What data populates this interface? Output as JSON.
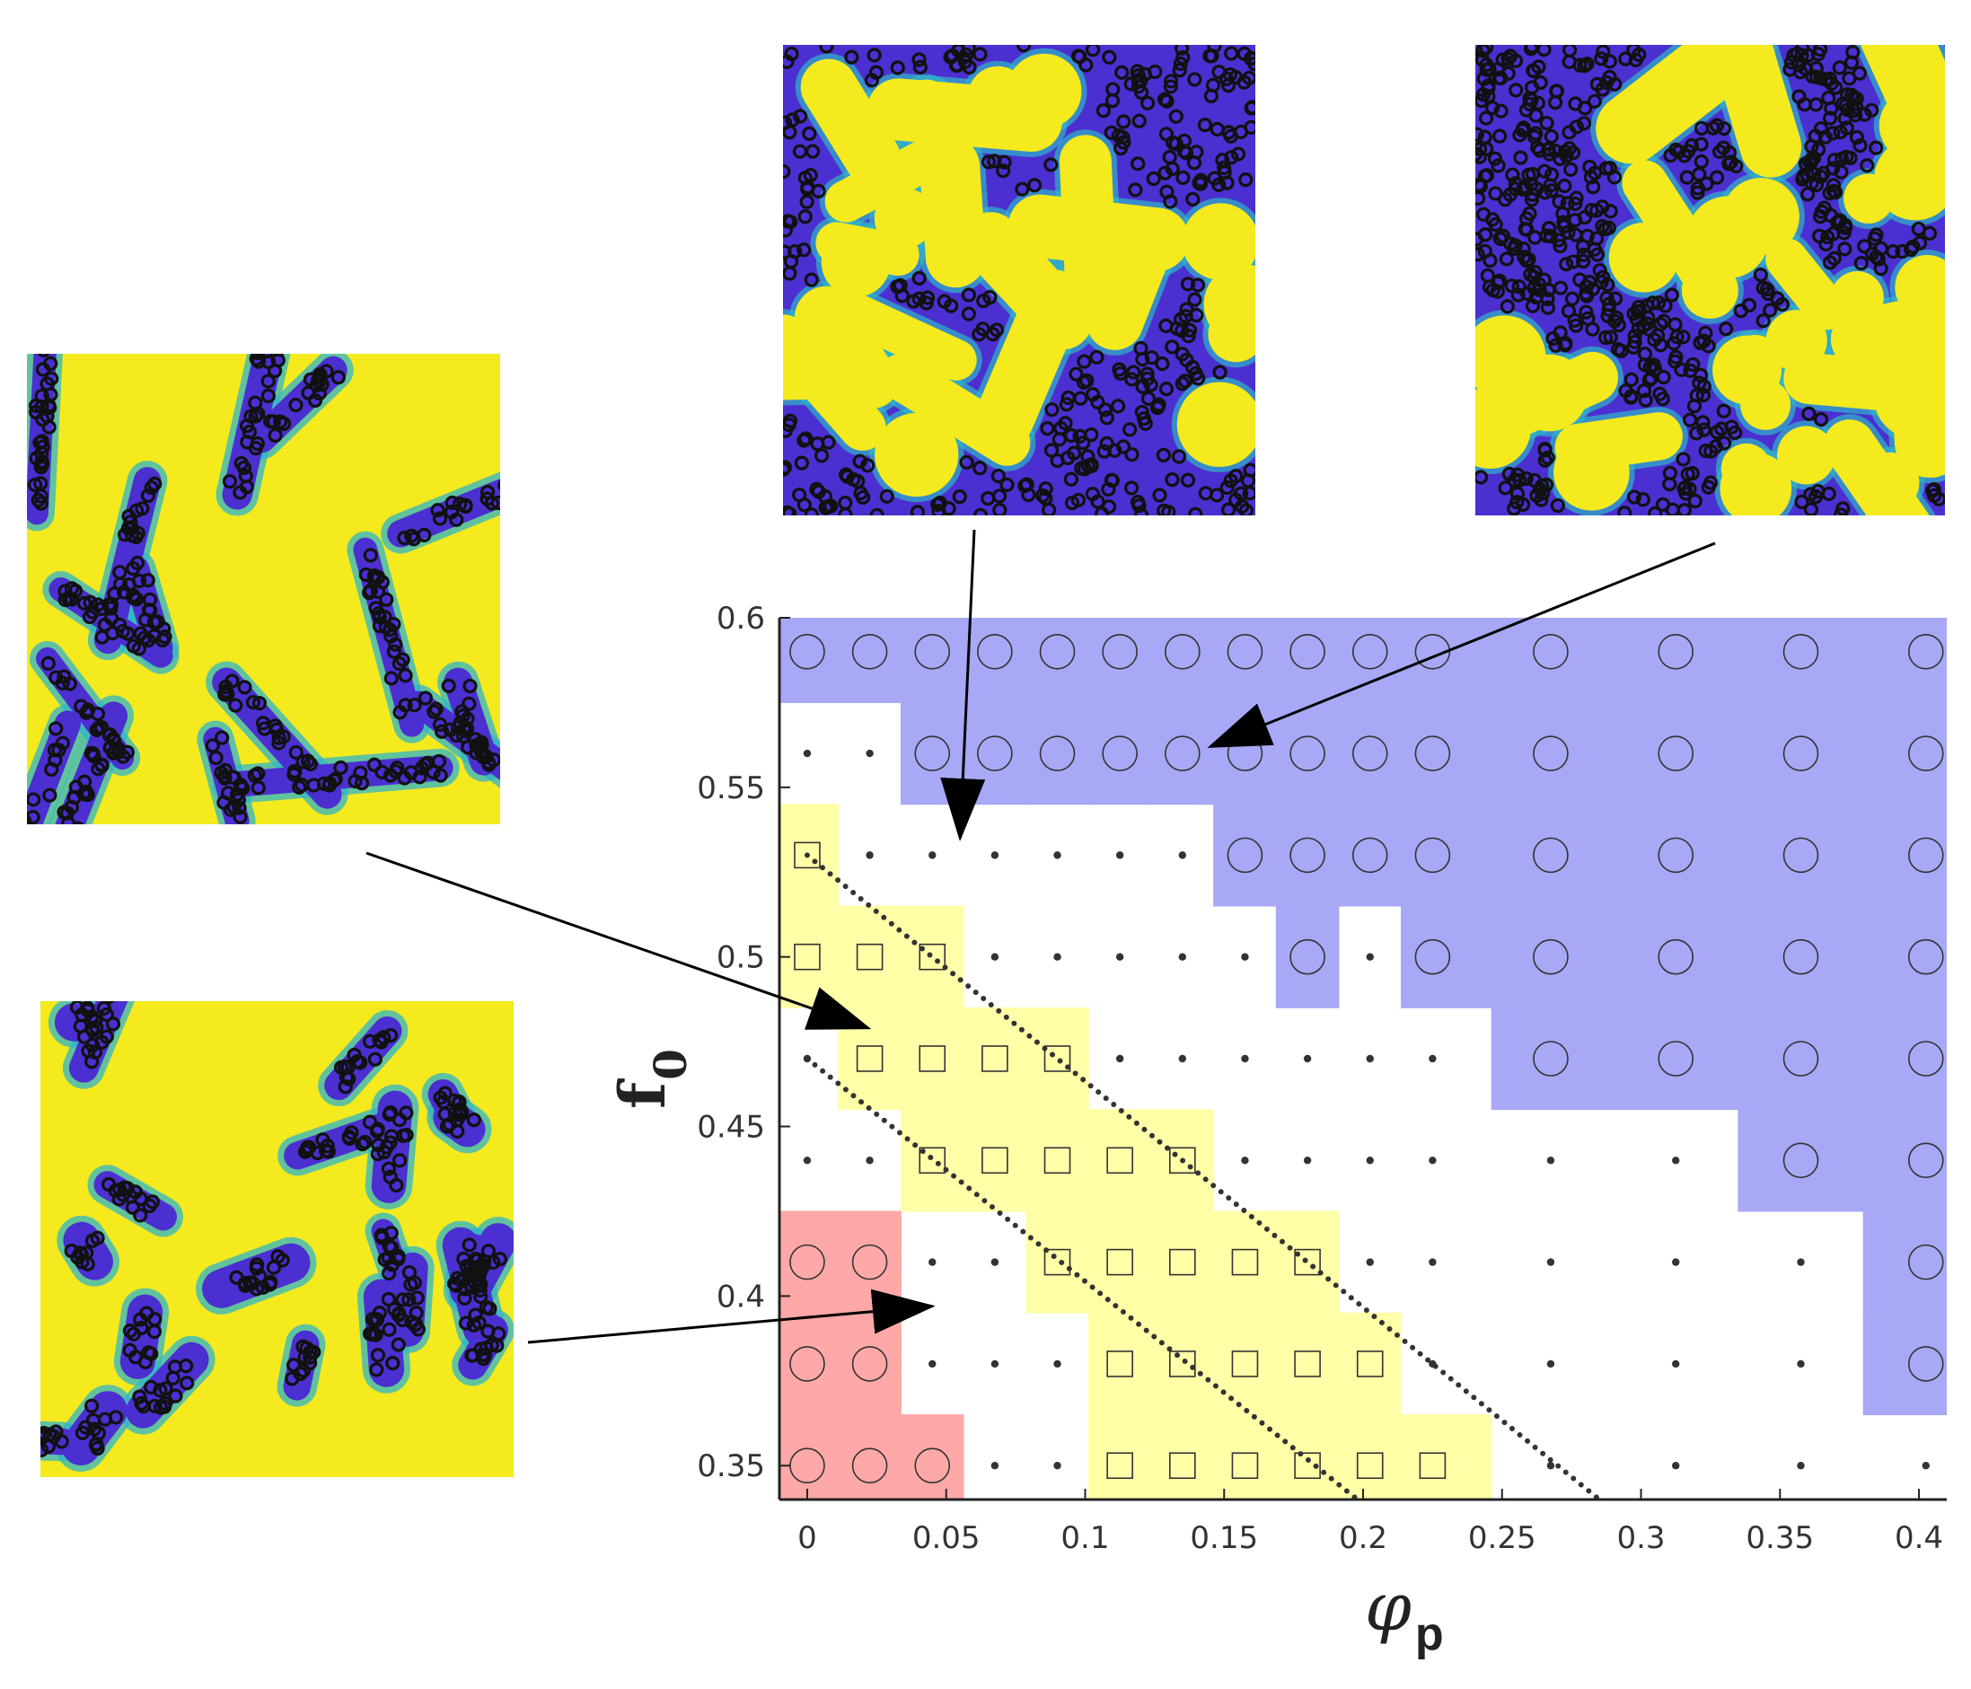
{
  "colors": {
    "blue_region": "#a8a8f6",
    "yellow_region": "#ffffa8",
    "red_region": "#ffa8a8",
    "marker": "#333333",
    "snapshot_yellow": "#f4ea1e",
    "snapshot_blue": "#4b2fd0",
    "snapshot_cyan": "#2fb6c8",
    "particle": "#111111",
    "arrow": "#000000"
  },
  "chart_data": {
    "type": "scatter",
    "title": "",
    "xlabel": "φ",
    "xlabel_subscript": "p",
    "ylabel": "f",
    "ylabel_subscript": "0",
    "xlim": [
      -0.01,
      0.41
    ],
    "ylim": [
      0.34,
      0.6
    ],
    "grid": false,
    "legend": "none",
    "x_ticks": [
      0,
      0.05,
      0.1,
      0.15,
      0.2,
      0.25,
      0.3,
      0.35,
      0.4
    ],
    "x_tick_labels": [
      "0",
      "0.05",
      "0.1",
      "0.15",
      "0.2",
      "0.25",
      "0.3",
      "0.35",
      "0.4"
    ],
    "y_ticks": [
      0.35,
      0.4,
      0.45,
      0.5,
      0.55,
      0.6
    ],
    "y_tick_labels": [
      "0.35",
      "0.4",
      "0.45",
      "0.5",
      "0.55",
      "0.6"
    ],
    "phi_values": [
      0,
      0.0225,
      0.045,
      0.0675,
      0.09,
      0.1125,
      0.135,
      0.1575,
      0.18,
      0.2025,
      0.225,
      0.2675,
      0.3125,
      0.3575,
      0.4025
    ],
    "f_values": [
      0.59,
      0.56,
      0.53,
      0.5,
      0.47,
      0.44,
      0.41,
      0.38,
      0.35
    ],
    "marker_legend": {
      "C": "circle",
      "S": "square",
      "D": "dot"
    },
    "markers_by_row": [
      "CCCCCCCCCCCCCCC",
      "DDCCCCCCCCCCCCC",
      "SDDDDDDCCCCCCCC",
      "SSSDDDDDCDCCCCC",
      "DSSSSDDDDDDCCCC",
      "DDSSSSSDDDDDDCC",
      "CCDDSSSSSDDDDDC",
      "CCDDDSSSSSDDDDC",
      "CCCDDSSSSSSDDDD"
    ],
    "dotted_lines": [
      {
        "x": [
          0,
          0.285
        ],
        "y": [
          0.53,
          0.34
        ]
      },
      {
        "x": [
          0,
          0.198
        ],
        "y": [
          0.47,
          0.34
        ]
      }
    ],
    "snapshots": [
      {
        "id": "top-middle",
        "points_to": {
          "x": 0.055,
          "y": 0.535
        }
      },
      {
        "id": "top-right",
        "points_to": {
          "x": 0.145,
          "y": 0.562
        }
      },
      {
        "id": "mid-left",
        "points_to": {
          "x": 0.022,
          "y": 0.479
        }
      },
      {
        "id": "bottom-left",
        "points_to": {
          "x": 0.045,
          "y": 0.397
        }
      }
    ]
  }
}
